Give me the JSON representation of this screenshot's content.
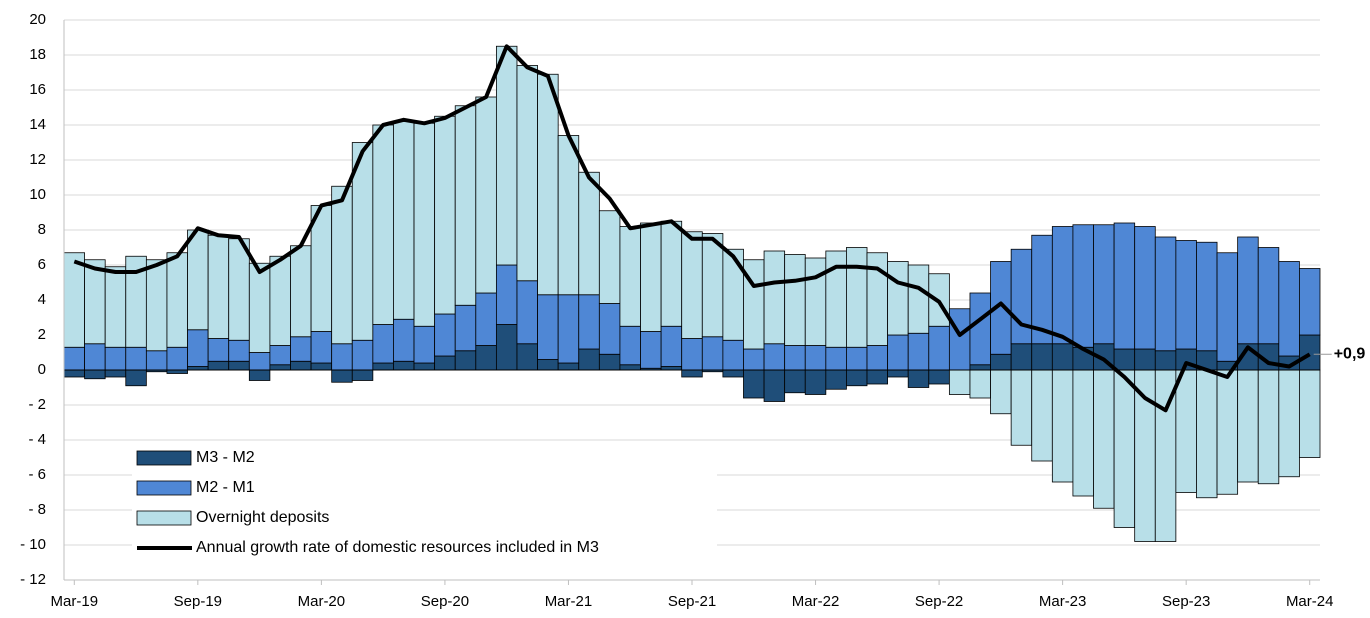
{
  "chart_data": {
    "type": "bar",
    "categories": [
      "Mar-19",
      null,
      null,
      null,
      null,
      null,
      "Sep-19",
      null,
      null,
      null,
      null,
      null,
      "Mar-20",
      null,
      null,
      null,
      null,
      null,
      "Sep-20",
      null,
      null,
      null,
      null,
      null,
      "Mar-21",
      null,
      null,
      null,
      null,
      null,
      "Sep-21",
      null,
      null,
      null,
      null,
      null,
      "Mar-22",
      null,
      null,
      null,
      null,
      null,
      "Sep-22",
      null,
      null,
      null,
      null,
      null,
      "Mar-23",
      null,
      null,
      null,
      null,
      null,
      "Sep-23",
      null,
      null,
      null,
      null,
      null,
      "Mar-24"
    ],
    "series": [
      {
        "name": "M3 - M2",
        "color": "#1f4e79",
        "values": [
          -0.4,
          -0.5,
          -0.4,
          -0.9,
          -0.1,
          -0.2,
          0.2,
          0.5,
          0.5,
          -0.6,
          0.3,
          0.5,
          0.4,
          -0.7,
          -0.6,
          0.4,
          0.5,
          0.4,
          0.8,
          1.1,
          1.4,
          2.6,
          1.5,
          0.6,
          0.4,
          1.2,
          0.9,
          0.3,
          0.1,
          0.2,
          -0.4,
          -0.1,
          -0.4,
          -1.6,
          -1.8,
          -1.3,
          -1.4,
          -1.1,
          -0.9,
          -0.8,
          -0.4,
          -1.0,
          -0.8,
          0,
          0.3,
          0.9,
          1.5,
          1.5,
          1.5,
          1.3,
          1.5,
          1.2,
          1.2,
          1.1,
          1.2,
          1.1,
          0.5,
          1.5,
          1.5,
          0.8,
          2.0
        ]
      },
      {
        "name": "M2 - M1",
        "color": "#4f87d5",
        "values": [
          1.3,
          1.5,
          1.3,
          1.3,
          1.1,
          1.3,
          2.1,
          1.3,
          1.2,
          1.0,
          1.1,
          1.4,
          1.8,
          1.5,
          1.7,
          2.2,
          2.4,
          2.1,
          2.4,
          2.6,
          3.0,
          3.4,
          3.6,
          3.7,
          3.9,
          3.1,
          2.9,
          2.2,
          2.1,
          2.3,
          1.8,
          1.9,
          1.7,
          1.2,
          1.5,
          1.4,
          1.4,
          1.3,
          1.3,
          1.4,
          2.0,
          2.1,
          2.5,
          3.5,
          4.1,
          5.3,
          5.4,
          6.2,
          6.7,
          7.0,
          6.8,
          7.2,
          7.0,
          6.5,
          6.2,
          6.2,
          6.2,
          6.1,
          5.5,
          5.4,
          3.8
        ]
      },
      {
        "name": "Overnight deposits",
        "color": "#b8dfe8",
        "values": [
          5.4,
          4.8,
          4.6,
          5.2,
          5.2,
          5.4,
          5.7,
          5.9,
          5.8,
          5.1,
          5.1,
          5.2,
          7.2,
          9.0,
          11.3,
          11.4,
          11.3,
          11.6,
          11.3,
          11.4,
          11.2,
          12.5,
          12.3,
          12.6,
          9.1,
          7.0,
          5.3,
          5.7,
          6.2,
          6.0,
          6.1,
          5.9,
          5.2,
          5.1,
          5.3,
          5.2,
          5.0,
          5.5,
          5.7,
          5.3,
          4.2,
          3.9,
          3.0,
          -1.4,
          -1.6,
          -2.5,
          -4.3,
          -5.2,
          -6.4,
          -7.2,
          -7.9,
          -9.0,
          -9.8,
          -9.8,
          -7.0,
          -7.3,
          -7.1,
          -6.4,
          -6.5,
          -6.1,
          -5.0
        ]
      },
      {
        "name": "Annual growth rate of domestic resources included in M3",
        "type": "line",
        "color": "#000000",
        "values": [
          6.2,
          5.8,
          5.6,
          5.6,
          6.0,
          6.5,
          8.1,
          7.7,
          7.6,
          5.6,
          6.3,
          7.1,
          9.4,
          9.7,
          12.5,
          14.0,
          14.3,
          14.1,
          14.4,
          15.0,
          15.6,
          18.5,
          17.3,
          16.8,
          13.4,
          11.0,
          9.8,
          8.1,
          8.3,
          8.5,
          7.5,
          7.5,
          6.5,
          4.8,
          5.0,
          5.1,
          5.3,
          5.9,
          5.9,
          5.8,
          5.0,
          4.7,
          3.9,
          2.0,
          2.9,
          3.8,
          2.6,
          2.3,
          1.9,
          1.2,
          0.6,
          -0.4,
          -1.6,
          -2.3,
          0.4,
          0.0,
          -0.4,
          1.3,
          0.4,
          0.2,
          0.9
        ],
        "value_labels": [
          null,
          null,
          null,
          null,
          null,
          null,
          null,
          null,
          null,
          null,
          null,
          null,
          null,
          null,
          null,
          null,
          null,
          null,
          null,
          null,
          null,
          null,
          null,
          null,
          null,
          null,
          null,
          null,
          null,
          null,
          null,
          null,
          null,
          null,
          null,
          null,
          null,
          null,
          null,
          null,
          null,
          null,
          null,
          null,
          null,
          null,
          null,
          null,
          null,
          null,
          null,
          null,
          null,
          null,
          null,
          null,
          null,
          null,
          null,
          null,
          "+0,9"
        ]
      }
    ],
    "ylim": [
      -12,
      20
    ],
    "yticks": [
      {
        "value": -12,
        "label": "- 12"
      },
      {
        "value": -10,
        "label": "- 10"
      },
      {
        "value": -8,
        "label": "- 8"
      },
      {
        "value": -6,
        "label": "- 6"
      },
      {
        "value": -4,
        "label": "- 4"
      },
      {
        "value": -2,
        "label": "- 2"
      },
      0,
      2,
      4,
      6,
      8,
      10,
      12,
      14,
      16,
      18,
      20
    ],
    "grid": true,
    "legend": "lower left"
  }
}
